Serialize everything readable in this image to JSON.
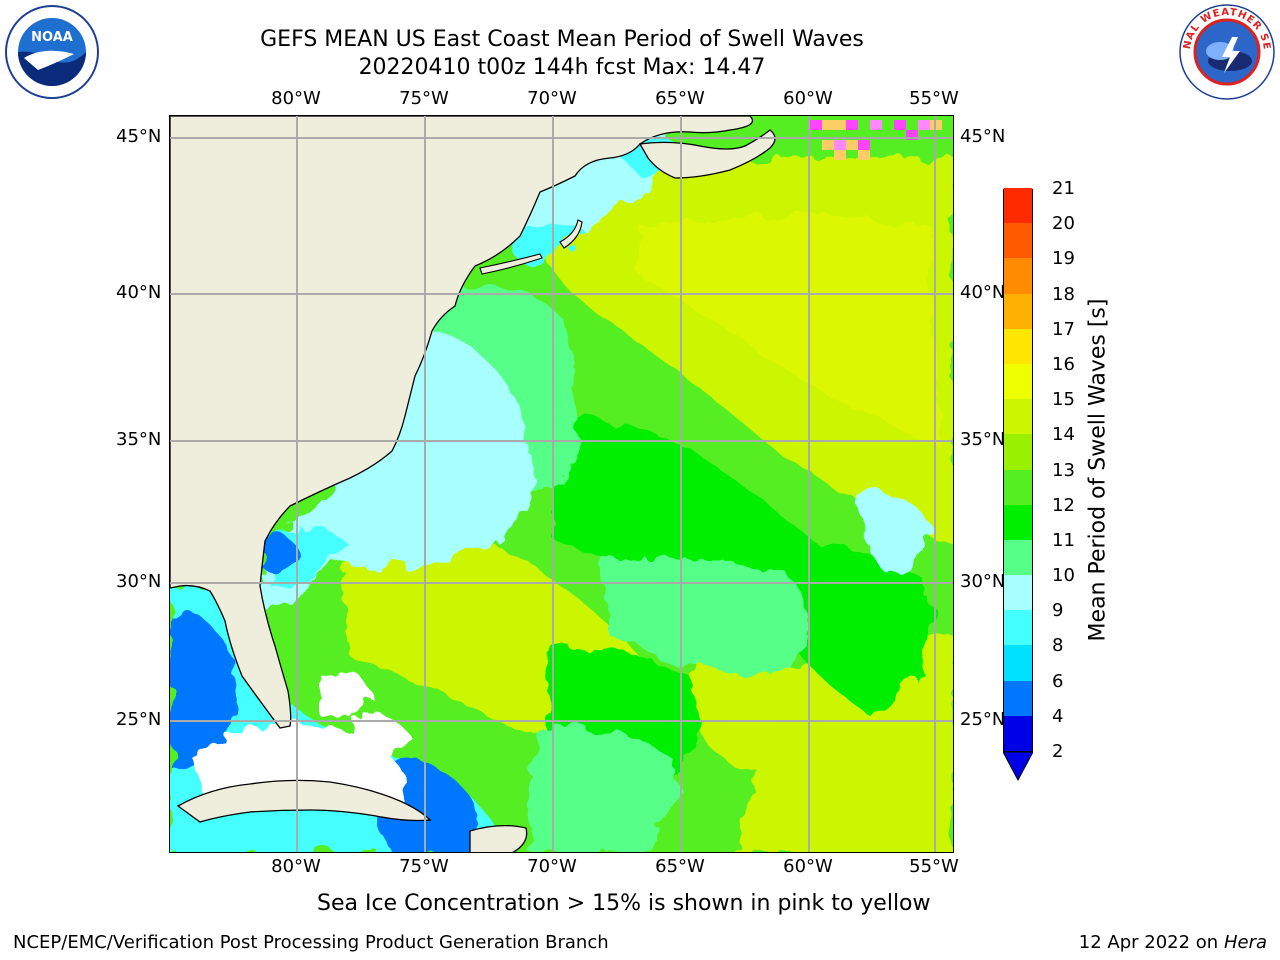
{
  "header": {
    "title": "GEFS MEAN US East Coast Mean Period of Swell Waves",
    "subtitle": "20220410 t00z 144h fcst   Max: 14.47"
  },
  "logos": {
    "left": "noaa-logo",
    "right": "nws-logo"
  },
  "map": {
    "lon_labels": [
      "80°W",
      "75°W",
      "70°W",
      "65°W",
      "60°W",
      "55°W"
    ],
    "lat_labels": [
      "45°N",
      "40°N",
      "35°N",
      "30°N",
      "25°N"
    ]
  },
  "colorbar": {
    "title": "Mean Period of Swell Waves [s]",
    "levels": [
      "2",
      "4",
      "6",
      "8",
      "9",
      "10",
      "11",
      "12",
      "13",
      "14",
      "15",
      "16",
      "17",
      "18",
      "19",
      "20",
      "21"
    ],
    "colors": [
      "#0000e6",
      "#0077ff",
      "#00e0ff",
      "#44ffff",
      "#a8ffff",
      "#55ff88",
      "#00ee00",
      "#55ee22",
      "#99f000",
      "#ccf500",
      "#eeff00",
      "#ffe600",
      "#ffb000",
      "#ff8c00",
      "#ff5a00",
      "#ff2a00",
      "#ff0000"
    ],
    "under_color": "#0000e6"
  },
  "note": "Sea Ice Concentration > 15% is shown in pink to yellow",
  "footer": {
    "left": "NCEP/EMC/Verification Post Processing Product Generation Branch",
    "date": "12 Apr 2022 on ",
    "machine": "Hera"
  }
}
